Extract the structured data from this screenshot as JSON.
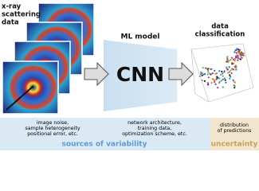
{
  "input_label": [
    "x-ray",
    "scattering",
    "data"
  ],
  "model_label": "ML model",
  "model_name": "CNN",
  "output_label": [
    "data",
    "classification"
  ],
  "sources": [
    [
      "image noise,",
      "sample heterogeneity",
      "positional error, etc."
    ],
    [
      "network architecture,",
      "training data,",
      "optimization scheme, etc."
    ],
    [
      "distribution",
      "of predictions"
    ]
  ],
  "sources_title": "sources of variability",
  "uncertainty_title": "uncertainty"
}
